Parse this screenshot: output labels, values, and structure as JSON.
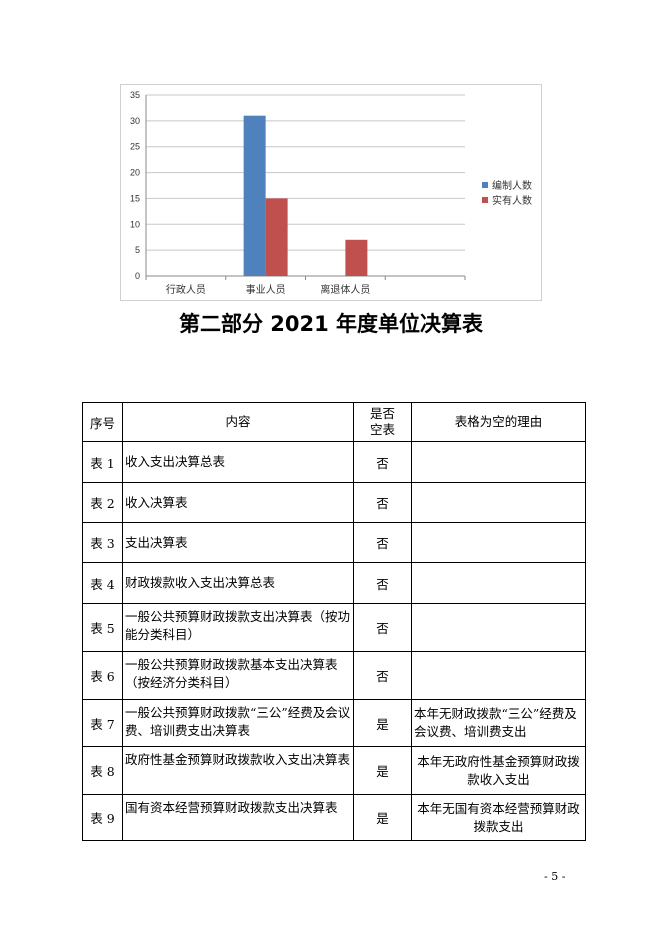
{
  "chart_data": {
    "type": "bar",
    "categories": [
      "行政人员",
      "事业人员",
      "离退体人员",
      ""
    ],
    "series": [
      {
        "name": "编制人数",
        "values": [
          0,
          31,
          0,
          null
        ],
        "color": "#4f81bd"
      },
      {
        "name": "实有人数",
        "values": [
          0,
          15,
          7,
          null
        ],
        "color": "#c0504d"
      }
    ],
    "ylim": [
      0,
      35
    ],
    "yticks": [
      0,
      5,
      10,
      15,
      20,
      25,
      30,
      35
    ],
    "grid": true,
    "legend": "right"
  },
  "title": "第二部分 2021 年度单位决算表",
  "table": {
    "headers": [
      "序号",
      "内容",
      "是否空表",
      "表格为空的理由"
    ],
    "rows": [
      {
        "no": "表 1",
        "content": "收入支出决算总表",
        "empty": "否",
        "reason": ""
      },
      {
        "no": "表 2",
        "content": "收入决算表",
        "empty": "否",
        "reason": ""
      },
      {
        "no": "表 3",
        "content": "支出决算表",
        "empty": "否",
        "reason": ""
      },
      {
        "no": "表 4",
        "content": "财政拨款收入支出决算总表",
        "empty": "否",
        "reason": ""
      },
      {
        "no": "表 5",
        "content": "一般公共预算财政拨款支出决算表（按功能分类科目）",
        "empty": "否",
        "reason": ""
      },
      {
        "no": "表 6",
        "content": "一般公共预算财政拨款基本支出决算表（按经济分类科目）",
        "empty": "否",
        "reason": ""
      },
      {
        "no": "表 7",
        "content": "一般公共预算财政拨款“三公”经费及会议费、培训费支出决算表",
        "empty": "是",
        "reason": "本年无财政拨款“三公”经费及会议费、培训费支出"
      },
      {
        "no": "表 8",
        "content": "政府性基金预算财政拨款收入支出决算表",
        "empty": "是",
        "reason": "本年无政府性基金预算财政拨款收入支出"
      },
      {
        "no": "表 9",
        "content": "国有资本经营预算财政拨款支出决算表",
        "empty": "是",
        "reason": "本年无国有资本经营预算财政拨款支出"
      }
    ]
  },
  "page_number": "- 5 -"
}
